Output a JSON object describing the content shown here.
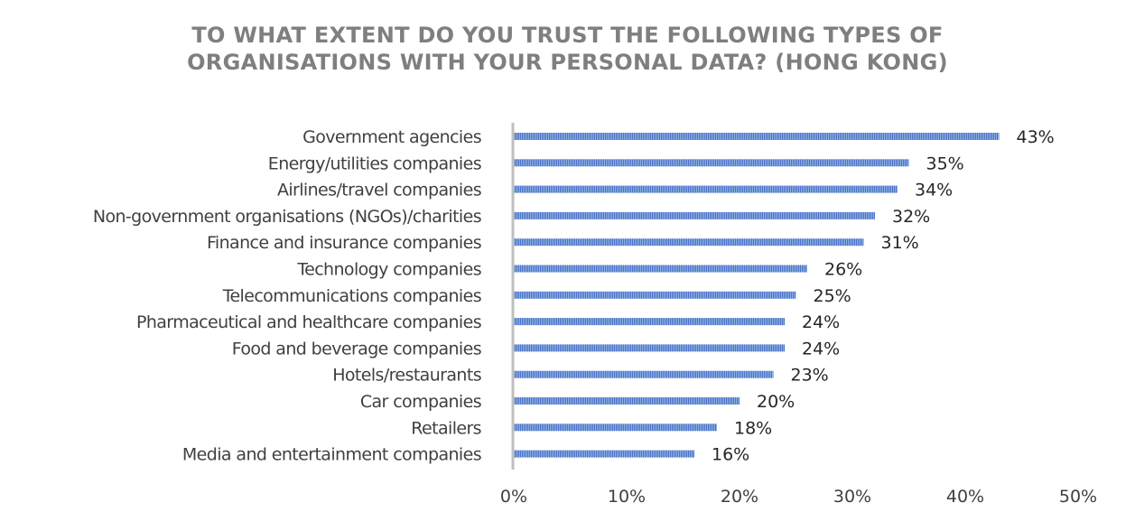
{
  "title": {
    "line1": "TO WHAT EXTENT DO YOU TRUST THE FOLLOWING TYPES OF",
    "line2": "ORGANISATIONS WITH YOUR PERSONAL DATA? (HONG KONG)"
  },
  "colors": {
    "bar": "#4a72c4",
    "bar_light": "#8fb0e6",
    "axis": "#bfbfbf",
    "title": "#7f7f7f"
  },
  "chart_data": {
    "type": "bar",
    "orientation": "horizontal",
    "title": "TO WHAT EXTENT DO YOU TRUST THE FOLLOWING TYPES OF ORGANISATIONS WITH YOUR PERSONAL DATA? (HONG KONG)",
    "categories": [
      "Government agencies",
      "Energy/utilities companies",
      "Airlines/travel companies",
      "Non-government organisations (NGOs)/charities",
      "Finance and insurance companies",
      "Technology companies",
      "Telecommunications companies",
      "Pharmaceutical and healthcare companies",
      "Food and beverage companies",
      "Hotels/restaurants",
      "Car companies",
      "Retailers",
      "Media and entertainment companies"
    ],
    "values": [
      43,
      35,
      34,
      32,
      31,
      26,
      25,
      24,
      24,
      23,
      20,
      18,
      16
    ],
    "value_labels": [
      "43%",
      "35%",
      "34%",
      "32%",
      "31%",
      "26%",
      "25%",
      "24%",
      "24%",
      "23%",
      "20%",
      "18%",
      "16%"
    ],
    "xlim": [
      0,
      50
    ],
    "xticks": [
      "0%",
      "10%",
      "20%",
      "30%",
      "40%",
      "50%"
    ],
    "xlabel": "",
    "ylabel": "",
    "grid": false,
    "legend": "none"
  }
}
